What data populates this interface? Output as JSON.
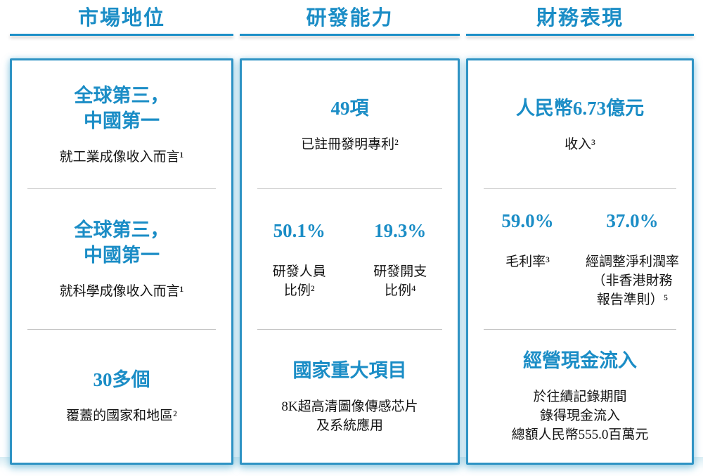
{
  "colors": {
    "accent_blue": "#1b8dc6",
    "box_border_blue": "#2e93c4",
    "divider_gray": "#c3c3c3",
    "text_black": "#141414"
  },
  "columns": [
    {
      "header": "市場地位",
      "sections": [
        {
          "title": "全球第三，\n中國第一",
          "label": "就工業成像收入而言¹"
        },
        {
          "title": "全球第三，\n中國第一",
          "label": "就科學成像收入而言¹"
        },
        {
          "title": "30多個",
          "label": "覆蓋的國家和地區²"
        }
      ]
    },
    {
      "header": "研發能力",
      "sections": [
        {
          "title": "49項",
          "label": "已註冊發明專利²"
        },
        {
          "stats": [
            {
              "value": "50.1%",
              "label": "研發人員\n比例²"
            },
            {
              "value": "19.3%",
              "label": "研發開支\n比例⁴"
            }
          ]
        },
        {
          "title": "國家重大項目",
          "label": "8K超高清圖像傳感芯片\n及系統應用"
        }
      ]
    },
    {
      "header": "財務表現",
      "sections": [
        {
          "title": "人民幣6.73億元",
          "label": "收入³"
        },
        {
          "stats": [
            {
              "value": "59.0%",
              "label": "毛利率³"
            },
            {
              "value": "37.0%",
              "label": "經調整淨利潤率\n（非香港財務\n報告準則）⁵"
            }
          ]
        },
        {
          "title": "經營現金流入",
          "label": "於往績記錄期間\n錄得現金流入\n總額人民幣555.0百萬元"
        }
      ]
    }
  ]
}
